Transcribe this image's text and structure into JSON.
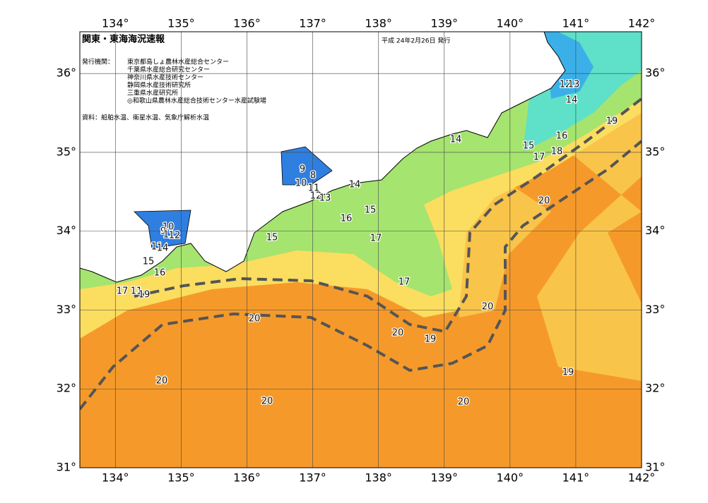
{
  "header": {
    "title": "関東・東海海況速報",
    "date": "平成 24年2月26日 発行",
    "issuer_label": "発行機関：",
    "issuers": [
      "東京都島しょ農林水産総合センター",
      "千葉県水産総合研究センター",
      "神奈川県水産技術センター",
      "静岡県水産技術研究所",
      "三重県水産研究所",
      "◎和歌山県農林水産総合技術センター水産試験場"
    ],
    "source": "資料：船舶水温、衛星水温、気象庁解析水温"
  },
  "map": {
    "lon_ticks": [
      {
        "value": 134,
        "label": "134°"
      },
      {
        "value": 135,
        "label": "135°"
      },
      {
        "value": 136,
        "label": "136°"
      },
      {
        "value": 137,
        "label": "137°"
      },
      {
        "value": 138,
        "label": "138°"
      },
      {
        "value": 139,
        "label": "139°"
      },
      {
        "value": 140,
        "label": "140°"
      },
      {
        "value": 141,
        "label": "141°"
      },
      {
        "value": 142,
        "label": "142°"
      }
    ],
    "lat_ticks": [
      {
        "value": 31,
        "label": "31°"
      },
      {
        "value": 32,
        "label": "32°"
      },
      {
        "value": 33,
        "label": "33°"
      },
      {
        "value": 34,
        "label": "34°"
      },
      {
        "value": 35,
        "label": "35°"
      },
      {
        "value": 36,
        "label": "36°"
      }
    ],
    "lonlim": [
      133.46,
      142
    ],
    "latlim": [
      31,
      36.53
    ],
    "contour_labels": [
      14,
      15,
      17,
      18,
      16,
      19,
      12,
      13,
      14,
      9,
      8,
      10,
      11,
      12,
      13,
      14,
      15,
      16,
      17,
      15,
      10,
      9,
      11,
      12,
      11,
      14,
      15,
      16,
      17,
      11,
      19,
      17,
      20,
      20,
      20,
      20,
      19,
      20,
      20,
      19,
      20
    ]
  }
}
